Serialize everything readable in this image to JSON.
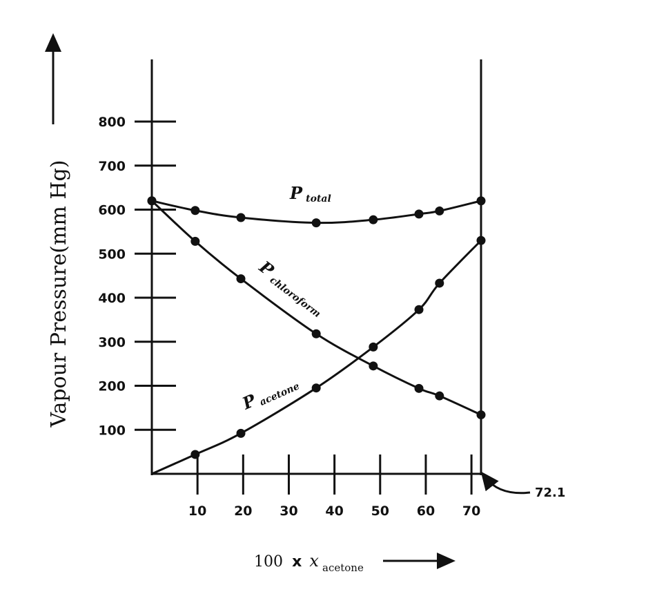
{
  "chart_data": {
    "type": "line",
    "ylabel": "Vapour Pressure(mm Hg)",
    "xlabel": {
      "prefix": "100",
      "times": "x",
      "variable": "x",
      "subscript": "acetone"
    },
    "xlim": [
      0,
      72.1
    ],
    "ylim": [
      0,
      800
    ],
    "x_ticks": [
      10,
      20,
      30,
      40,
      50,
      60,
      70
    ],
    "y_ticks": [
      100,
      200,
      300,
      400,
      500,
      600,
      700,
      800
    ],
    "grid": false,
    "series": [
      {
        "label_main": "P",
        "label_sub": "total",
        "x": [
          0,
          9.5,
          19.5,
          36,
          48.5,
          58.5,
          63,
          72.1
        ],
        "y": [
          620,
          598,
          582,
          570,
          577,
          590,
          597,
          620
        ]
      },
      {
        "label_main": "P",
        "label_sub": "chloroform",
        "x": [
          0,
          9.5,
          19.5,
          36,
          48.5,
          58.5,
          63,
          72.1
        ],
        "y": [
          620,
          528,
          443,
          318,
          245,
          194,
          177,
          134
        ]
      },
      {
        "label_main": "P",
        "label_sub": "acetone",
        "x": [
          0,
          9.5,
          19.5,
          36,
          48.5,
          58.5,
          63,
          72.1
        ],
        "y": [
          0,
          44,
          92,
          195,
          288,
          373,
          433,
          530
        ]
      }
    ],
    "annotations": [
      {
        "text": "72.1",
        "x": 72.1,
        "y": 0
      }
    ],
    "colors": {
      "line": "#111111",
      "background": "#ffffff"
    }
  }
}
